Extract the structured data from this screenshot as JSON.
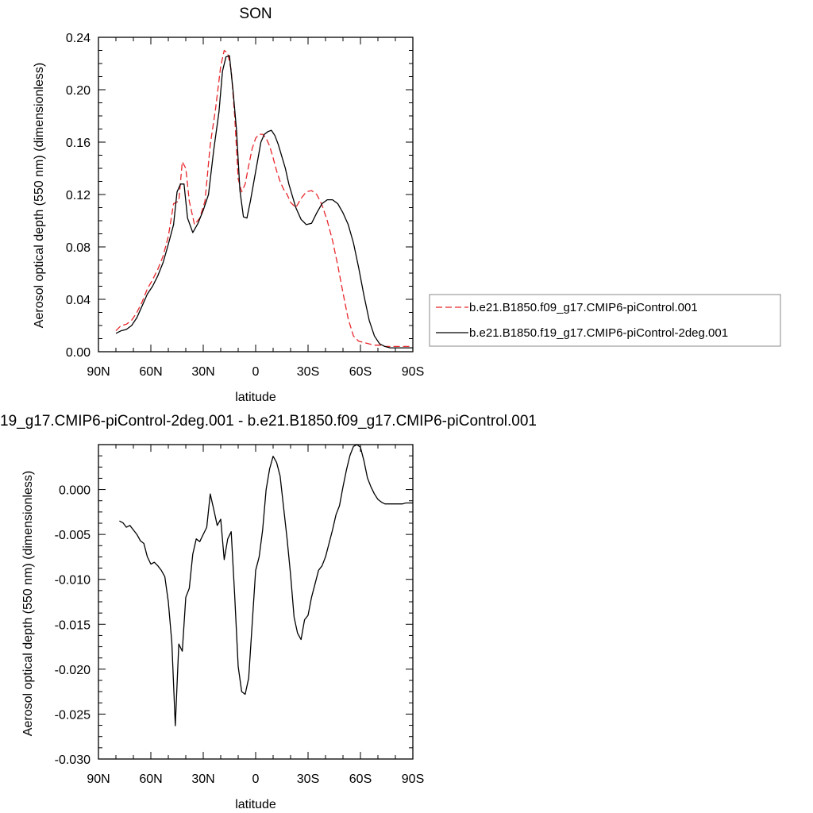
{
  "chart_data": [
    {
      "type": "line",
      "title": "SON",
      "xlabel": "latitude",
      "ylabel": "Aerosol optical depth (550 nm) (dimensionless)",
      "xlim": [
        90,
        -90
      ],
      "ylim": [
        0.0,
        0.24
      ],
      "xticks": [
        90,
        60,
        30,
        0,
        -30,
        -60,
        -90
      ],
      "xtick_labels": [
        "90N",
        "60N",
        "30N",
        "0",
        "30S",
        "60S",
        "90S"
      ],
      "yticks": [
        0.0,
        0.04,
        0.08,
        0.12,
        0.16,
        0.2,
        0.24
      ],
      "ytick_labels": [
        "0.00",
        "0.04",
        "0.08",
        "0.12",
        "0.16",
        "0.20",
        "0.24"
      ],
      "grid": false,
      "legend_position": "right",
      "series": [
        {
          "name": "b.e21.B1850.f09_g17.CMIP6-piControl.001",
          "color": "#e8262b",
          "dash": "dashed",
          "x": [
            80,
            77,
            74,
            71,
            68,
            65,
            62,
            59,
            56,
            53,
            50,
            47,
            44,
            42,
            40,
            38,
            35,
            32,
            29,
            26,
            23,
            20,
            18,
            16,
            14,
            12,
            10,
            8,
            6,
            4,
            2,
            0,
            -2,
            -4,
            -6,
            -8,
            -10,
            -12,
            -14,
            -16,
            -18,
            -20,
            -23,
            -26,
            -29,
            -32,
            -35,
            -38,
            -41,
            -44,
            -47,
            -50,
            -53,
            -56,
            -59,
            -62,
            -65,
            -68,
            -71,
            -74,
            -77,
            -80,
            -85,
            -90
          ],
          "y": [
            0.016,
            0.02,
            0.021,
            0.024,
            0.03,
            0.038,
            0.048,
            0.055,
            0.063,
            0.073,
            0.088,
            0.113,
            0.115,
            0.145,
            0.14,
            0.115,
            0.097,
            0.102,
            0.115,
            0.158,
            0.185,
            0.218,
            0.23,
            0.228,
            0.215,
            0.18,
            0.132,
            0.122,
            0.128,
            0.142,
            0.155,
            0.163,
            0.166,
            0.166,
            0.163,
            0.157,
            0.148,
            0.138,
            0.13,
            0.124,
            0.12,
            0.114,
            0.11,
            0.117,
            0.122,
            0.123,
            0.12,
            0.112,
            0.1,
            0.085,
            0.066,
            0.045,
            0.025,
            0.012,
            0.008,
            0.007,
            0.006,
            0.005,
            0.005,
            0.004,
            0.004,
            0.004,
            0.004,
            0.004
          ]
        },
        {
          "name": "b.e21.B1850.f19_g17.CMIP6-piControl-2deg.001",
          "color": "#000000",
          "dash": "solid",
          "x": [
            80,
            77,
            74,
            71,
            68,
            65,
            62,
            59,
            56,
            53,
            50,
            47,
            45,
            43,
            41,
            39,
            36,
            33,
            30,
            27,
            24,
            21,
            19,
            17,
            15,
            13,
            11,
            9,
            7,
            5,
            3,
            1,
            -1,
            -3,
            -5,
            -7,
            -9,
            -11,
            -13,
            -15,
            -17,
            -19,
            -21,
            -23,
            -26,
            -29,
            -32,
            -35,
            -38,
            -41,
            -44,
            -47,
            -50,
            -53,
            -56,
            -59,
            -62,
            -65,
            -68,
            -71,
            -74,
            -77,
            -80,
            -85,
            -90
          ],
          "y": [
            0.014,
            0.016,
            0.017,
            0.02,
            0.026,
            0.035,
            0.044,
            0.05,
            0.058,
            0.068,
            0.082,
            0.097,
            0.122,
            0.128,
            0.128,
            0.102,
            0.091,
            0.098,
            0.108,
            0.12,
            0.154,
            0.183,
            0.214,
            0.225,
            0.226,
            0.2,
            0.17,
            0.123,
            0.103,
            0.102,
            0.115,
            0.13,
            0.145,
            0.16,
            0.166,
            0.168,
            0.169,
            0.165,
            0.158,
            0.149,
            0.14,
            0.128,
            0.119,
            0.11,
            0.101,
            0.097,
            0.098,
            0.106,
            0.113,
            0.116,
            0.116,
            0.113,
            0.106,
            0.097,
            0.083,
            0.064,
            0.043,
            0.024,
            0.012,
            0.006,
            0.004,
            0.003,
            0.003,
            0.003,
            0.003
          ]
        }
      ]
    },
    {
      "type": "line",
      "title": "19_g17.CMIP6-piControl-2deg.001 - b.e21.B1850.f09_g17.CMIP6-piControl.001",
      "xlabel": "latitude",
      "ylabel": "Aerosol optical depth (550 nm) (dimensionless)",
      "xlim": [
        90,
        -90
      ],
      "ylim": [
        -0.03,
        0.005
      ],
      "xticks": [
        90,
        60,
        30,
        0,
        -30,
        -60,
        -90
      ],
      "xtick_labels": [
        "90N",
        "60N",
        "30N",
        "0",
        "30S",
        "60S",
        "90S"
      ],
      "yticks": [
        -0.03,
        -0.025,
        -0.02,
        -0.015,
        -0.01,
        -0.005,
        0.0
      ],
      "ytick_labels": [
        "-0.030",
        "-0.025",
        "-0.020",
        "-0.015",
        "-0.010",
        "-0.005",
        "0.000"
      ],
      "grid": false,
      "series": [
        {
          "color": "#000000",
          "dash": "solid",
          "x": [
            78,
            76,
            74,
            72,
            70,
            68,
            66,
            64,
            62,
            60,
            58,
            56,
            54,
            52,
            50,
            48,
            46,
            44,
            42,
            40,
            38,
            36,
            34,
            32,
            30,
            28,
            26,
            24,
            22,
            20,
            18,
            16,
            14,
            12,
            10,
            8,
            6,
            4,
            2,
            0,
            -2,
            -4,
            -6,
            -8,
            -10,
            -12,
            -14,
            -16,
            -18,
            -20,
            -22,
            -24,
            -26,
            -28,
            -30,
            -32,
            -34,
            -36,
            -38,
            -40,
            -42,
            -44,
            -46,
            -48,
            -50,
            -52,
            -54,
            -56,
            -58,
            -60,
            -62,
            -64,
            -66,
            -68,
            -70,
            -72,
            -74,
            -76,
            -78,
            -80,
            -82,
            -84,
            -86,
            -88,
            -90
          ],
          "y": [
            -0.0035,
            -0.0037,
            -0.0042,
            -0.004,
            -0.0045,
            -0.005,
            -0.0057,
            -0.006,
            -0.0075,
            -0.0083,
            -0.0081,
            -0.0085,
            -0.009,
            -0.0097,
            -0.0125,
            -0.017,
            -0.0263,
            -0.0172,
            -0.018,
            -0.012,
            -0.011,
            -0.0072,
            -0.0055,
            -0.0058,
            -0.005,
            -0.0042,
            -0.0005,
            -0.0022,
            -0.004,
            -0.0033,
            -0.0078,
            -0.0055,
            -0.0047,
            -0.0118,
            -0.0197,
            -0.0225,
            -0.0228,
            -0.021,
            -0.015,
            -0.009,
            -0.0075,
            -0.0045,
            0.0,
            0.0023,
            0.0037,
            0.003,
            0.0015,
            -0.002,
            -0.0055,
            -0.0095,
            -0.0142,
            -0.016,
            -0.0167,
            -0.0145,
            -0.014,
            -0.012,
            -0.0105,
            -0.009,
            -0.0085,
            -0.0075,
            -0.006,
            -0.0045,
            -0.0028,
            -0.0018,
            0.0003,
            0.0022,
            0.0038,
            0.0048,
            0.005,
            0.0047,
            0.0032,
            0.0013,
            0.0003,
            -0.0005,
            -0.0011,
            -0.0014,
            -0.0016,
            -0.0016,
            -0.0016,
            -0.0016,
            -0.0016,
            -0.0016,
            -0.0015,
            -0.0015,
            -0.0015
          ]
        }
      ]
    }
  ]
}
